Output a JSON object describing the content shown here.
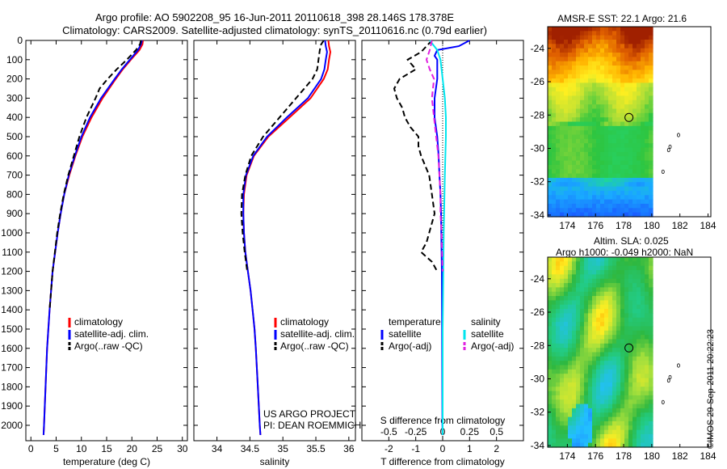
{
  "header": {
    "line1": "Argo profile: AO 5902208_95 16-Jun-2011 20110618_398 28.146S 178.378E",
    "line2": "Climatology: CARS2009. Satellite-adjusted climatology: synTS_20110616.nc (0.79d earlier)"
  },
  "credit": "©IMOS 29-Sep-2011 20:22:23",
  "colors": {
    "climatology": "#ff0000",
    "satellite": "#0000ff",
    "argo": "#000000",
    "sat_salinity": "#00e5ee",
    "argo_salinity": "#e020e0"
  },
  "chart_data": [
    {
      "type": "line",
      "xlabel": "temperature (deg C)",
      "ylabel": "",
      "xlim": [
        -1,
        31
      ],
      "ylim": [
        2080,
        0
      ],
      "xticks": [
        0,
        5,
        10,
        15,
        20,
        25,
        30
      ],
      "yticks": [
        0,
        100,
        200,
        300,
        400,
        500,
        600,
        700,
        800,
        900,
        1000,
        1100,
        1200,
        1300,
        1400,
        1500,
        1600,
        1700,
        1800,
        1900,
        2000
      ],
      "legend": {
        "position": "center-left",
        "entries": [
          "climatology",
          "satellite-adj. clim.",
          "Argo(..raw -QC)"
        ]
      },
      "series": [
        {
          "name": "climatology",
          "style": "solid",
          "color": "#ff0000",
          "depth": [
            0,
            20,
            50,
            100,
            150,
            200,
            300,
            400,
            500,
            600,
            700,
            800,
            900,
            1000,
            1200,
            1400,
            1600,
            1800,
            2000,
            2050
          ],
          "values": [
            22.2,
            22.1,
            21.5,
            19.8,
            18.2,
            16.8,
            14.2,
            12.0,
            10.2,
            8.8,
            7.6,
            6.6,
            5.9,
            5.3,
            4.3,
            3.7,
            3.2,
            2.9,
            2.6,
            2.5
          ]
        },
        {
          "name": "satellite-adj. clim.",
          "style": "solid",
          "color": "#0000ff",
          "depth": [
            0,
            20,
            50,
            100,
            150,
            200,
            300,
            400,
            500,
            600,
            700,
            800,
            900,
            1000,
            1200,
            1400,
            1600,
            1800,
            2000,
            2050
          ],
          "values": [
            22.0,
            21.8,
            21.2,
            19.6,
            18.0,
            16.6,
            13.9,
            11.7,
            10.0,
            8.7,
            7.5,
            6.6,
            5.9,
            5.3,
            4.3,
            3.7,
            3.2,
            2.9,
            2.6,
            2.5
          ]
        },
        {
          "name": "Argo(..raw -QC)",
          "style": "dashed",
          "color": "#000000",
          "depth": [
            0,
            20,
            50,
            100,
            150,
            200,
            250,
            300,
            400,
            500,
            600,
            700,
            800,
            900,
            1000,
            1200,
            1400
          ],
          "values": [
            21.8,
            21.6,
            20.8,
            19.0,
            17.0,
            15.2,
            13.6,
            12.8,
            11.0,
            9.6,
            8.5,
            7.4,
            6.5,
            5.8,
            5.2,
            4.3,
            3.7
          ]
        }
      ]
    },
    {
      "type": "line",
      "xlabel": "salinity",
      "ylabel": "",
      "xlim": [
        33.65,
        36.1
      ],
      "ylim": [
        2080,
        0
      ],
      "xticks": [
        34,
        34.5,
        35,
        35.5,
        36
      ],
      "xtick_labels": [
        "34",
        "34.5",
        "35",
        "35.5",
        "36"
      ],
      "legend": {
        "position": "center-right",
        "entries": [
          "climatology",
          "satellite-adj. clim.",
          "Argo(..raw -QC)"
        ]
      },
      "annotations": [
        "US ARGO PROJECT",
        "PI: DEAN ROEMMICH"
      ],
      "series": [
        {
          "name": "climatology",
          "style": "solid",
          "color": "#ff0000",
          "depth": [
            0,
            30,
            60,
            100,
            150,
            200,
            300,
            400,
            500,
            600,
            700,
            800,
            900,
            1000,
            1100,
            1200,
            1300,
            1400,
            1500,
            1600,
            1800,
            2000,
            2050
          ],
          "values": [
            35.69,
            35.7,
            35.72,
            35.7,
            35.68,
            35.62,
            35.42,
            35.1,
            34.78,
            34.56,
            34.45,
            34.41,
            34.4,
            34.41,
            34.43,
            34.47,
            34.51,
            34.54,
            34.57,
            34.59,
            34.62,
            34.65,
            34.66
          ]
        },
        {
          "name": "satellite-adj. clim.",
          "style": "solid",
          "color": "#0000ff",
          "depth": [
            0,
            30,
            60,
            100,
            150,
            200,
            300,
            400,
            500,
            600,
            700,
            800,
            900,
            1000,
            1100,
            1200,
            1300,
            1400,
            1500,
            1600,
            1800,
            2000,
            2050
          ],
          "values": [
            35.64,
            35.65,
            35.67,
            35.65,
            35.63,
            35.58,
            35.38,
            35.06,
            34.76,
            34.55,
            34.44,
            34.4,
            34.4,
            34.41,
            34.43,
            34.47,
            34.51,
            34.54,
            34.57,
            34.59,
            34.62,
            34.65,
            34.66
          ]
        },
        {
          "name": "Argo(..raw -QC)",
          "style": "dashed",
          "color": "#000000",
          "depth": [
            0,
            20,
            50,
            100,
            150,
            200,
            300,
            400,
            500,
            600,
            700,
            800,
            900,
            1000,
            1100,
            1200
          ],
          "values": [
            35.62,
            35.58,
            35.56,
            35.54,
            35.52,
            35.45,
            35.2,
            34.95,
            34.7,
            34.52,
            34.43,
            34.38,
            34.37,
            34.39,
            34.42,
            34.46
          ]
        }
      ]
    },
    {
      "type": "line",
      "xlabel": "T difference from climatology",
      "xlabel_top": "S difference from climatology",
      "xlim": [
        -3,
        3
      ],
      "ylim": [
        2080,
        0
      ],
      "xticks": [
        -2,
        -1,
        0,
        1,
        2
      ],
      "top_ticks": [
        -0.5,
        -0.25,
        0,
        0.25,
        0.5
      ],
      "top_tick_labels": [
        "-0.5",
        "-0.25",
        "0",
        "0.25",
        "0.5"
      ],
      "legend": {
        "position": "center",
        "temperature_header": "temperature",
        "salinity_header": "salinity",
        "entries": [
          "satellite",
          "Argo(-adj)",
          "satellite",
          "Argo(-adj)"
        ]
      },
      "series": [
        {
          "name": "satellite",
          "group": "temperature",
          "style": "solid",
          "color": "#0000ff",
          "depth": [
            0,
            30,
            50,
            80,
            100,
            150,
            200,
            300,
            400,
            500,
            600,
            700,
            800,
            900,
            1000,
            1200,
            1500,
            2000,
            2050
          ],
          "values": [
            1.0,
            0.6,
            -0.2,
            -0.3,
            -0.2,
            -0.2,
            -0.2,
            -0.3,
            -0.3,
            -0.2,
            -0.15,
            -0.12,
            -0.08,
            -0.06,
            -0.05,
            -0.03,
            -0.02,
            -0.01,
            0
          ]
        },
        {
          "name": "Argo(-adj)",
          "group": "temperature",
          "style": "dashed",
          "color": "#000000",
          "depth": [
            0,
            30,
            60,
            100,
            150,
            200,
            250,
            300,
            350,
            400,
            450,
            500,
            550,
            600,
            700,
            800,
            900,
            1000,
            1050,
            1100,
            1150,
            1200
          ],
          "values": [
            -0.4,
            -0.6,
            -0.8,
            -1.3,
            -1.0,
            -1.6,
            -1.8,
            -1.7,
            -1.5,
            -1.4,
            -1.2,
            -0.9,
            -0.9,
            -0.8,
            -0.5,
            -0.4,
            -0.3,
            -0.5,
            -0.6,
            -0.8,
            -0.4,
            -0.2
          ]
        },
        {
          "name": "satellite",
          "group": "salinity",
          "style": "solid",
          "color": "#00e5ee",
          "depth": [
            0,
            50,
            100,
            200,
            300,
            400,
            500,
            700,
            1000,
            1500,
            2000,
            2050
          ],
          "values": [
            -0.12,
            -0.05,
            -0.02,
            0.0,
            0.02,
            0.03,
            0.03,
            0.02,
            0.01,
            0.0,
            0.0,
            0.0
          ]
        },
        {
          "name": "Argo(-adj)",
          "group": "salinity",
          "style": "dashed",
          "color": "#e020e0",
          "depth": [
            0,
            50,
            100,
            150,
            200,
            300,
            400,
            500,
            600,
            700,
            800,
            900,
            1000,
            1200
          ],
          "values": [
            -0.1,
            -0.12,
            -0.15,
            -0.12,
            -0.08,
            -0.1,
            -0.08,
            -0.06,
            -0.04,
            -0.03,
            -0.02,
            -0.02,
            -0.01,
            0.0
          ]
        }
      ]
    },
    {
      "type": "heatmap",
      "title": "AMSR-E SST: 22.1  Argo: 21.6",
      "xlim": [
        172.6,
        184.2
      ],
      "ylim": [
        -34.1,
        -22.7
      ],
      "xticks": [
        174,
        176,
        178,
        180,
        182,
        184
      ],
      "yticks": [
        -34,
        -32,
        -30,
        -28,
        -26,
        -24
      ],
      "marker": {
        "lon": 178.378,
        "lat": -28.146
      }
    },
    {
      "type": "heatmap",
      "title_line1": "Altim. SLA: 0.025",
      "title_line2": "Argo h1000: -0.049 h2000: NaN",
      "xlim": [
        172.6,
        184.2
      ],
      "ylim": [
        -34.1,
        -22.7
      ],
      "xticks": [
        174,
        176,
        178,
        180,
        182,
        184
      ],
      "yticks": [
        -34,
        -32,
        -30,
        -28,
        -26,
        -24
      ],
      "marker": {
        "lon": 178.378,
        "lat": -28.146
      }
    }
  ]
}
